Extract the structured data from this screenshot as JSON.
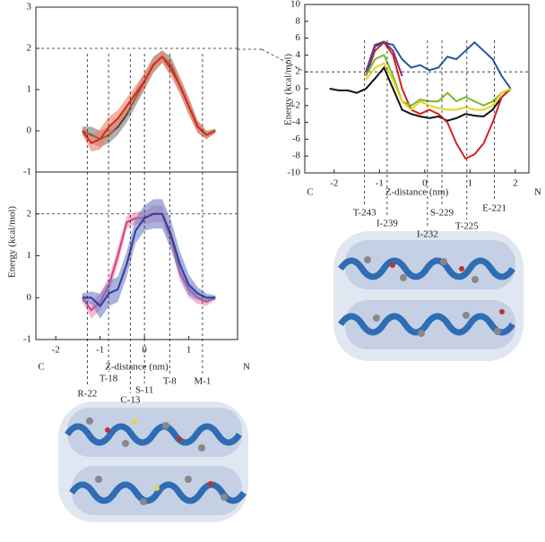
{
  "chart_data": [
    {
      "type": "line",
      "xlim": [
        -2.45,
        2.1
      ],
      "ylim": [
        -1,
        3
      ],
      "yticks": [
        -1,
        0,
        1,
        2,
        3
      ],
      "ylabel": "Energy (kcal/mol)",
      "ref_line": 2,
      "x": [
        -1.4,
        -1.2,
        -1.0,
        -0.8,
        -0.6,
        -0.4,
        -0.2,
        0.0,
        0.2,
        0.4,
        0.6,
        0.8,
        1.0,
        1.2,
        1.4,
        1.6
      ],
      "series": [
        {
          "color": "#222222",
          "band_color": "#7a7a7a",
          "values": [
            0,
            -0.1,
            -0.2,
            -0.1,
            0.1,
            0.4,
            0.8,
            1.2,
            1.6,
            1.8,
            1.6,
            1.1,
            0.6,
            0.1,
            -0.1,
            0
          ],
          "errors": [
            0.1,
            0.2,
            0.2,
            0.2,
            0.2,
            0.2,
            0.2,
            0.2,
            0.2,
            0.15,
            0.2,
            0.2,
            0.2,
            0.15,
            0.1,
            0.05
          ]
        },
        {
          "color": "#d42a1e",
          "band_color": "#f08060",
          "values": [
            0,
            -0.3,
            -0.2,
            0.1,
            0.3,
            0.6,
            0.9,
            1.2,
            1.6,
            1.8,
            1.5,
            1.1,
            0.6,
            0.1,
            -0.1,
            0
          ],
          "errors": [
            0.1,
            0.2,
            0.25,
            0.25,
            0.2,
            0.2,
            0.2,
            0.2,
            0.15,
            0.15,
            0.2,
            0.2,
            0.2,
            0.15,
            0.1,
            0.05
          ]
        }
      ]
    },
    {
      "type": "line",
      "xlim": [
        -2.45,
        2.1
      ],
      "ylim": [
        -1,
        3
      ],
      "yticks": [
        -1,
        0,
        1,
        2
      ],
      "xticks": [
        -2,
        -1,
        0,
        1
      ],
      "xlabel": "Z-distance (nm)",
      "left_end_label": "C",
      "right_end_label": "N",
      "ref_line": 2,
      "x": [
        -1.4,
        -1.2,
        -1.0,
        -0.8,
        -0.6,
        -0.4,
        -0.2,
        0.0,
        0.2,
        0.4,
        0.6,
        0.8,
        1.0,
        1.2,
        1.4,
        1.6
      ],
      "series": [
        {
          "color": "#d4427a",
          "band_color": "#f08cb4",
          "values": [
            0,
            -0.3,
            -0.1,
            0.3,
            1.0,
            1.8,
            1.9,
            1.9,
            2.0,
            2.0,
            1.4,
            0.6,
            0.2,
            0.0,
            -0.1,
            0
          ],
          "errors": [
            0.1,
            0.2,
            0.2,
            0.2,
            0.2,
            0.15,
            0.15,
            0.15,
            0.2,
            0.2,
            0.2,
            0.2,
            0.2,
            0.15,
            0.1,
            0.05
          ]
        },
        {
          "color": "#2b3f9a",
          "band_color": "#6f7ec8",
          "values": [
            0,
            0,
            -0.2,
            0.1,
            0.2,
            0.8,
            1.6,
            1.9,
            2.0,
            2.0,
            1.5,
            0.8,
            0.3,
            0.1,
            0,
            0
          ],
          "errors": [
            0.1,
            0.15,
            0.3,
            0.3,
            0.3,
            0.3,
            0.3,
            0.3,
            0.35,
            0.35,
            0.35,
            0.3,
            0.25,
            0.15,
            0.1,
            0.05
          ]
        }
      ],
      "annotations": [
        {
          "text": "R-22",
          "x": -1.29
        },
        {
          "text": "T-18",
          "x": -0.81
        },
        {
          "text": "C-13",
          "x": -0.32
        },
        {
          "text": "S-11",
          "x": 0
        },
        {
          "text": "T-8",
          "x": 0.57
        },
        {
          "text": "M-1",
          "x": 1.31
        }
      ]
    },
    {
      "type": "line",
      "xlim": [
        -2.65,
        2.3
      ],
      "ylim": [
        -10,
        10
      ],
      "yticks": [
        -10,
        -8,
        -6,
        -4,
        -2,
        0,
        2,
        4,
        6,
        8,
        10
      ],
      "xticks": [
        -2,
        -1,
        0,
        1,
        2
      ],
      "ylabel": "Energy (kcal/mol)",
      "xlabel": "Z-distance (nm)",
      "left_end_label": "C",
      "right_end_label": "N",
      "ref_line": 2,
      "x": [
        -2.1,
        -1.9,
        -1.7,
        -1.5,
        -1.3,
        -1.1,
        -0.9,
        -0.7,
        -0.5,
        -0.3,
        -0.1,
        0.1,
        0.3,
        0.5,
        0.7,
        0.9,
        1.1,
        1.3,
        1.5,
        1.7,
        1.9
      ],
      "series": [
        {
          "color": "#111111",
          "values": [
            0,
            -0.2,
            -0.2,
            -0.5,
            0,
            1.2,
            2.5,
            0,
            -2.5,
            -3,
            -3.3,
            -3.5,
            -3.3,
            -3.8,
            -3.5,
            -3.0,
            -3.2,
            -3.3,
            -2.5,
            -1,
            0
          ]
        },
        {
          "color": "#d62020",
          "values": [
            null,
            null,
            null,
            null,
            1.5,
            4.5,
            5.5,
            4,
            0,
            -2.5,
            -3,
            -2.5,
            -3,
            -4,
            -6.5,
            -8.3,
            -7.8,
            -6.5,
            -4,
            -1,
            0
          ]
        },
        {
          "color": "#1f5aa0",
          "values": [
            null,
            null,
            null,
            null,
            1.5,
            5,
            5.5,
            5.2,
            3.5,
            2.5,
            2.8,
            2.2,
            2.5,
            3.8,
            3.5,
            4.5,
            5.5,
            4.5,
            3.5,
            1.5,
            0
          ]
        },
        {
          "color": "#7ab82e",
          "values": [
            null,
            null,
            null,
            null,
            1.5,
            3.5,
            4,
            1.5,
            -1.5,
            -2,
            -1.3,
            -1.5,
            -1.5,
            -0.5,
            -1.5,
            -1,
            -1.5,
            -2,
            -1.5,
            -0.5,
            0
          ]
        },
        {
          "color": "#e8d21c",
          "values": [
            null,
            null,
            null,
            null,
            1.0,
            2.5,
            3,
            1,
            -1.5,
            -2.5,
            -1.5,
            -2,
            -2.3,
            -2.5,
            -2.5,
            -2.2,
            -2.5,
            -2.5,
            -2,
            -0.5,
            0
          ]
        },
        {
          "color": "#8a2a7a",
          "values": [
            null,
            null,
            null,
            null,
            2,
            5.2,
            5.6,
            4.5,
            1.5,
            null,
            null,
            null,
            null,
            null,
            null,
            null,
            null,
            null,
            null,
            null,
            null
          ]
        }
      ],
      "annotations": [
        {
          "text": "T-243",
          "x": -1.33
        },
        {
          "text": "I-239",
          "x": -0.83
        },
        {
          "text": "I-232",
          "x": 0.06
        },
        {
          "text": "S-229",
          "x": 0.38
        },
        {
          "text": "T-225",
          "x": 0.93
        },
        {
          "text": "E-221",
          "x": 1.54
        }
      ]
    }
  ]
}
